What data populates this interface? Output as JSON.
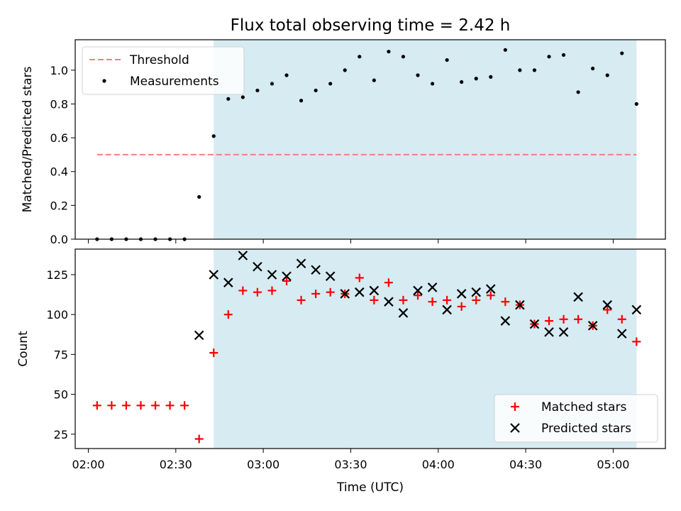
{
  "title": "Flux total observing time = 2.42 h",
  "colors": {
    "threshold": "#f08080",
    "measurement": "#000000",
    "matched": "#ff0000",
    "predicted": "#000000",
    "observing_band": "#add8e6"
  },
  "chart_data": [
    {
      "type": "scatter",
      "panel": "top",
      "ylabel": "Matched/Predicted stars",
      "ylim": [
        0,
        1.18
      ],
      "yticks": [
        0.0,
        0.2,
        0.4,
        0.6,
        0.8,
        1.0
      ],
      "ytick_labels": [
        "0.0",
        "0.2",
        "0.4",
        "0.6",
        "0.8",
        "1.0"
      ],
      "x_time_min": [
        122.5,
        152.6
      ],
      "legend_position": "upper left",
      "observing_window": [
        "02:43",
        "05:08"
      ],
      "threshold": {
        "name": "Threshold",
        "value": 0.5,
        "x": [
          "02:03",
          "05:08"
        ]
      },
      "series": [
        {
          "name": "Measurements",
          "marker": "dot",
          "x": [
            "02:03",
            "02:08",
            "02:13",
            "02:18",
            "02:23",
            "02:28",
            "02:33",
            "02:38",
            "02:43",
            "02:48",
            "02:53",
            "02:58",
            "03:03",
            "03:08",
            "03:13",
            "03:18",
            "03:23",
            "03:28",
            "03:33",
            "03:38",
            "03:43",
            "03:48",
            "03:53",
            "03:58",
            "04:03",
            "04:08",
            "04:13",
            "04:18",
            "04:23",
            "04:28",
            "04:33",
            "04:38",
            "04:43",
            "04:48",
            "04:53",
            "04:58",
            "05:03",
            "05:08"
          ],
          "values": [
            0.0,
            0.0,
            0.0,
            0.0,
            0.0,
            0.0,
            0.0,
            0.25,
            0.61,
            0.83,
            0.84,
            0.88,
            0.92,
            0.97,
            0.82,
            0.88,
            0.92,
            1.0,
            1.08,
            0.94,
            1.11,
            1.08,
            0.97,
            0.92,
            1.06,
            0.93,
            0.95,
            0.96,
            1.12,
            1.0,
            1.0,
            1.08,
            1.09,
            0.87,
            1.01,
            0.97,
            1.1,
            0.8
          ]
        }
      ]
    },
    {
      "type": "scatter",
      "panel": "bottom",
      "xlabel": "Time (UTC)",
      "ylabel": "Count",
      "ylim": [
        16,
        141
      ],
      "yticks": [
        25,
        50,
        75,
        100,
        125
      ],
      "ytick_labels": [
        "25",
        "50",
        "75",
        "100",
        "125"
      ],
      "x_time_min": [
        122.5,
        152.6
      ],
      "xticks": [
        "02:00",
        "02:30",
        "03:00",
        "03:30",
        "04:00",
        "04:30",
        "05:00"
      ],
      "legend_position": "lower right",
      "observing_window": [
        "02:43",
        "05:08"
      ],
      "series": [
        {
          "name": "Matched stars",
          "marker": "plus",
          "x": [
            "02:03",
            "02:08",
            "02:13",
            "02:18",
            "02:23",
            "02:28",
            "02:33",
            "02:38",
            "02:43",
            "02:48",
            "02:53",
            "02:58",
            "03:03",
            "03:08",
            "03:13",
            "03:18",
            "03:23",
            "03:28",
            "03:33",
            "03:38",
            "03:43",
            "03:48",
            "03:53",
            "03:58",
            "04:03",
            "04:08",
            "04:13",
            "04:18",
            "04:23",
            "04:28",
            "04:33",
            "04:38",
            "04:43",
            "04:48",
            "04:53",
            "04:58",
            "05:03",
            "05:08"
          ],
          "values": [
            43,
            43,
            43,
            43,
            43,
            43,
            43,
            22,
            76,
            100,
            115,
            114,
            115,
            121,
            109,
            113,
            114,
            113,
            123,
            109,
            120,
            109,
            112,
            108,
            109,
            105,
            109,
            112,
            108,
            106,
            94,
            96,
            97,
            97,
            93,
            103,
            97,
            83
          ]
        },
        {
          "name": "Predicted stars",
          "marker": "x",
          "x": [
            "02:38",
            "02:43",
            "02:48",
            "02:53",
            "02:58",
            "03:03",
            "03:08",
            "03:13",
            "03:18",
            "03:23",
            "03:28",
            "03:33",
            "03:38",
            "03:43",
            "03:48",
            "03:53",
            "03:58",
            "04:03",
            "04:08",
            "04:13",
            "04:18",
            "04:23",
            "04:28",
            "04:33",
            "04:38",
            "04:43",
            "04:48",
            "04:53",
            "04:58",
            "05:03",
            "05:08"
          ],
          "values": [
            87,
            125,
            120,
            137,
            130,
            125,
            124,
            132,
            128,
            124,
            113,
            114,
            115,
            108,
            101,
            115,
            117,
            103,
            113,
            114,
            116,
            96,
            106,
            94,
            89,
            89,
            111,
            93,
            106,
            88,
            103
          ]
        }
      ]
    }
  ]
}
